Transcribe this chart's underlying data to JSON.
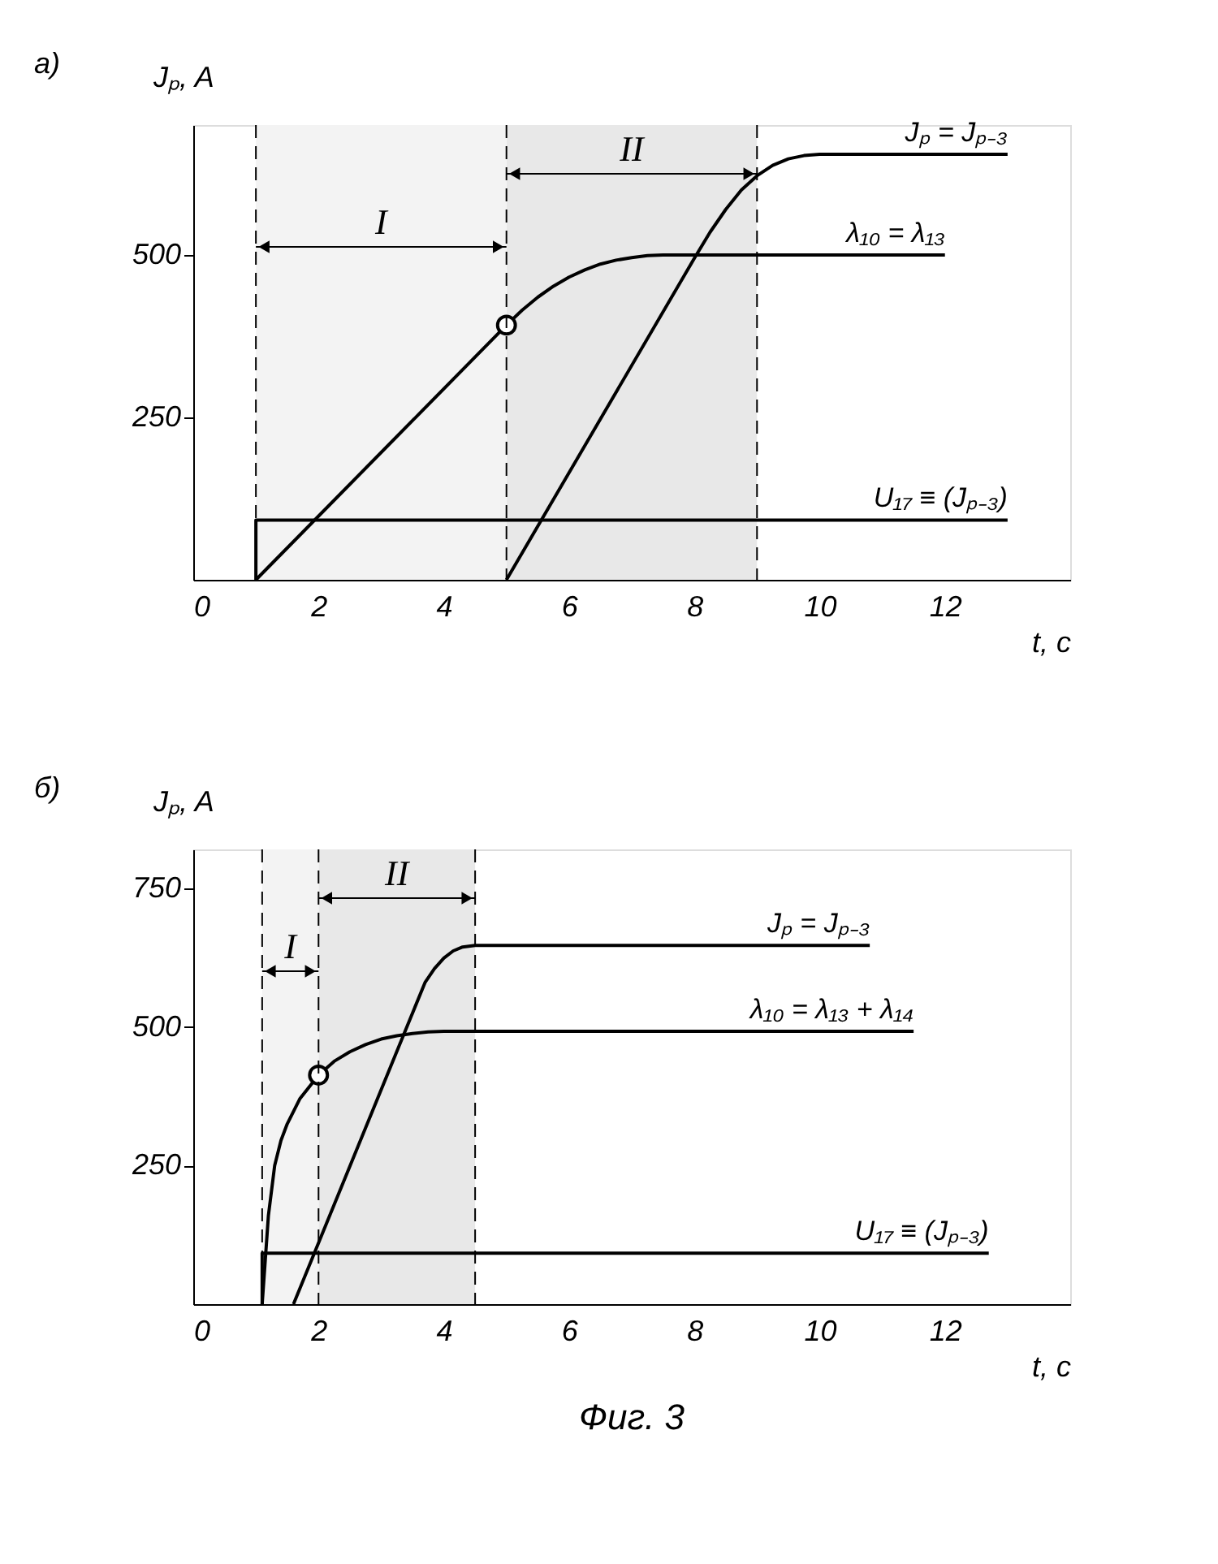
{
  "chart_data": [
    {
      "type": "line",
      "title": "а)",
      "xlabel": "t, c",
      "ylabel": "Jₚ, A",
      "xlim": [
        0,
        14
      ],
      "ylim": [
        0,
        700
      ],
      "xticks": [
        0,
        2,
        4,
        6,
        8,
        10,
        12
      ],
      "yticks": [
        250,
        500
      ],
      "grid": false,
      "line_style": "solid",
      "series": [
        {
          "name": "Jₚ = Jₚ₋₃",
          "color": "#000000",
          "x": [
            5,
            8,
            8.25,
            8.5,
            8.75,
            9,
            9.25,
            9.5,
            9.75,
            10,
            13
          ],
          "values": [
            0,
            495,
            535,
            570,
            600,
            622,
            638,
            648,
            653,
            655,
            655
          ]
        },
        {
          "name": "λ₁₀ = λ₁₃",
          "color": "#000000",
          "x": [
            1,
            5,
            5.25,
            5.5,
            5.75,
            6,
            6.25,
            6.5,
            6.75,
            7,
            7.25,
            7.5,
            12
          ],
          "values": [
            0,
            392,
            415,
            435,
            452,
            466,
            477,
            486,
            492,
            496,
            499,
            500,
            500
          ]
        },
        {
          "name": "U₁₇ ≡ (Jₚ₋₃)",
          "color": "#000000",
          "x": [
            1,
            1,
            13
          ],
          "values": [
            0,
            92,
            92
          ]
        },
        {
          "type": "scatter",
          "marker": "circle",
          "color": "#000000",
          "x": [
            5
          ],
          "values": [
            392
          ]
        }
      ],
      "ref_lines": [
        {
          "axis": "x",
          "value": 1,
          "line_style": "dashed",
          "color": "#000000"
        },
        {
          "axis": "x",
          "value": 5,
          "line_style": "dashed",
          "color": "#000000"
        },
        {
          "axis": "x",
          "value": 9,
          "line_style": "dashed",
          "color": "#000000"
        }
      ],
      "bands": [
        {
          "axis": "x",
          "from": 1,
          "to": 5,
          "label": "I",
          "color": "#f3f3f3"
        },
        {
          "axis": "x",
          "from": 5,
          "to": 9,
          "label": "II",
          "color": "#e8e8e8"
        }
      ]
    },
    {
      "type": "line",
      "title": "б)",
      "xlabel": "t, c",
      "ylabel": "Jₚ, A",
      "xlim": [
        0,
        14
      ],
      "ylim": [
        0,
        820
      ],
      "xticks": [
        0,
        2,
        4,
        6,
        8,
        10,
        12
      ],
      "yticks": [
        250,
        500,
        750
      ],
      "grid": false,
      "line_style": "solid",
      "series": [
        {
          "name": "Jₚ = Jₚ₋₃",
          "color": "#000000",
          "x": [
            1.6,
            3.7,
            3.85,
            4,
            4.15,
            4.3,
            4.5,
            10.8
          ],
          "values": [
            0,
            580,
            605,
            624,
            637,
            644,
            647,
            647
          ]
        },
        {
          "name": "λ₁₀ = λ₁₃ + λ₁₄",
          "color": "#000000",
          "x": [
            1.1,
            1.15,
            1.2,
            1.3,
            1.4,
            1.5,
            1.7,
            2,
            2.25,
            2.5,
            2.75,
            3,
            3.25,
            3.5,
            3.75,
            4,
            11.5
          ],
          "values": [
            0,
            80,
            160,
            250,
            295,
            325,
            370,
            413,
            438,
            455,
            468,
            478,
            484,
            488,
            491,
            492,
            492
          ]
        },
        {
          "name": "U₁₇ ≡ (Jₚ₋₃)",
          "color": "#000000",
          "x": [
            1.1,
            1.1,
            12.7
          ],
          "values": [
            0,
            92,
            92
          ]
        },
        {
          "type": "scatter",
          "marker": "circle",
          "color": "#000000",
          "x": [
            2
          ],
          "values": [
            413
          ]
        }
      ],
      "ref_lines": [
        {
          "axis": "x",
          "value": 1.1,
          "line_style": "dashed",
          "color": "#000000"
        },
        {
          "axis": "x",
          "value": 2,
          "line_style": "dashed",
          "color": "#000000"
        },
        {
          "axis": "x",
          "value": 4.5,
          "line_style": "dashed",
          "color": "#000000"
        }
      ],
      "bands": [
        {
          "axis": "x",
          "from": 1.1,
          "to": 2,
          "label": "I",
          "color": "#f3f3f3"
        },
        {
          "axis": "x",
          "from": 2,
          "to": 4.5,
          "label": "II",
          "color": "#e8e8e8"
        }
      ],
      "annotations": [
        "Фиг. 3"
      ]
    }
  ]
}
